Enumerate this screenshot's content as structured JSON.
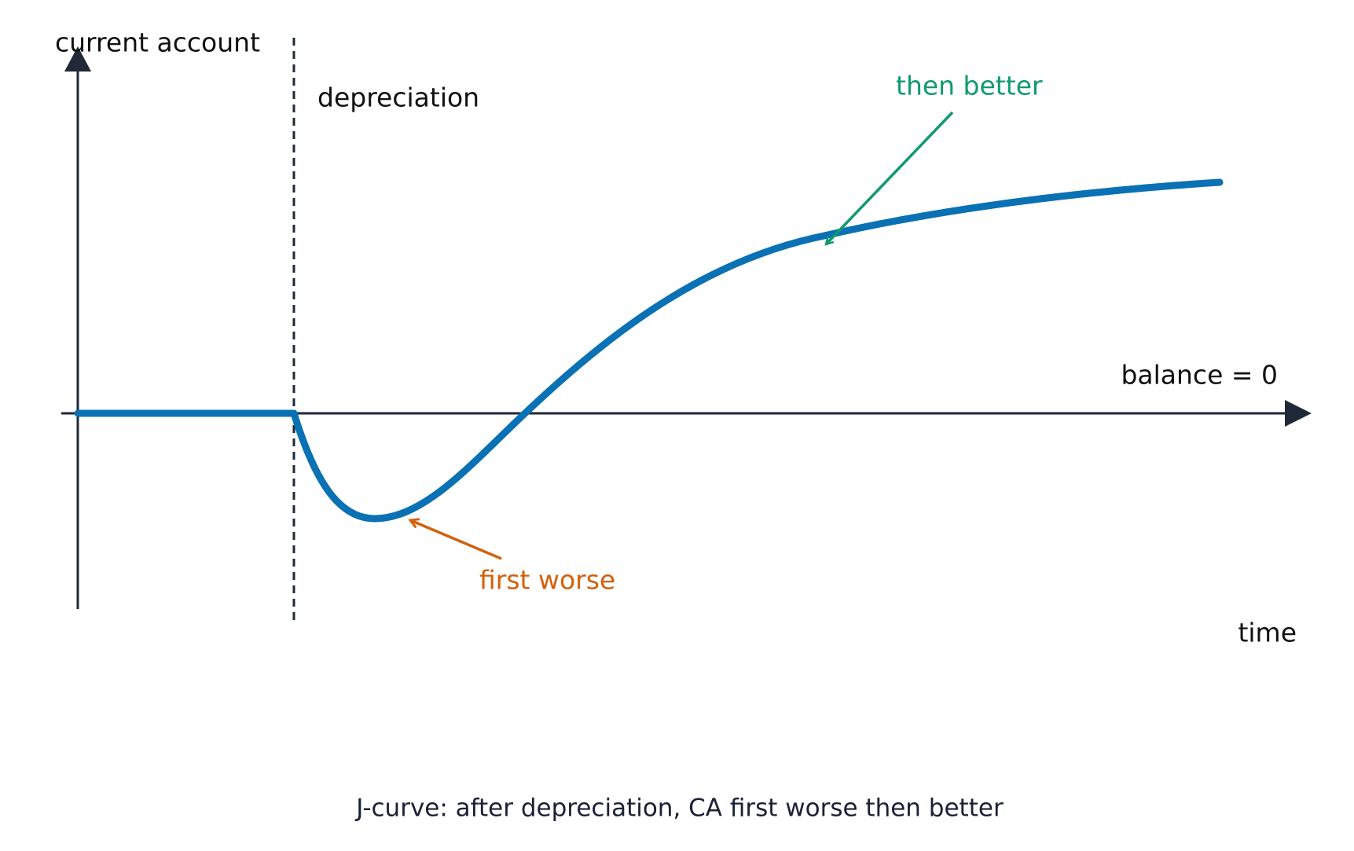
{
  "axes": {
    "y_label": "current account",
    "x_label": "time",
    "zero_label": "balance = 0"
  },
  "event": {
    "label": "depreciation"
  },
  "annotations": [
    {
      "text": "then better"
    },
    {
      "text": "first worse"
    }
  ],
  "caption": "J-curve: after depreciation, CA first worse then better"
}
